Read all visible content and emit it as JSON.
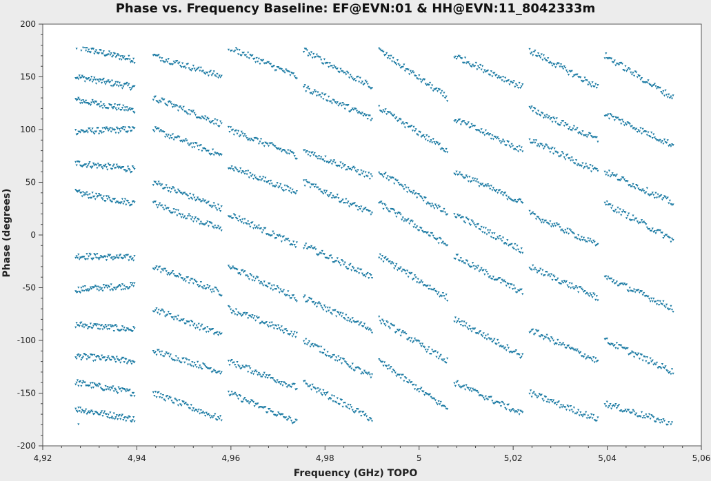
{
  "chart_data": {
    "type": "scatter",
    "title": "Phase vs. Frequency Baseline: EF@EVN:01 & HH@EVN:11_8042333m",
    "xlabel": "Frequency (GHz) TOPO",
    "ylabel": "Phase (degrees)",
    "xlim": [
      4.92,
      5.06
    ],
    "ylim": [
      -200,
      200
    ],
    "x_ticks": [
      "4,92",
      "4,94",
      "4,96",
      "4,98",
      "5",
      "5,02",
      "5,04",
      "5,06"
    ],
    "y_ticks": [
      "200",
      "150",
      "100",
      "50",
      "0",
      "-50",
      "-100",
      "-150",
      "-200"
    ],
    "grid": false,
    "marker_color": "#1a7aa3",
    "background_color": "#ffffff",
    "spectral_windows": [
      {
        "x_start": 4.927,
        "x_end": 4.9395
      },
      {
        "x_start": 4.9435,
        "x_end": 4.958
      },
      {
        "x_start": 4.9595,
        "x_end": 4.974
      },
      {
        "x_start": 4.9755,
        "x_end": 4.99
      },
      {
        "x_start": 4.9915,
        "x_end": 5.006
      },
      {
        "x_start": 5.0075,
        "x_end": 5.022
      },
      {
        "x_start": 5.0235,
        "x_end": 5.038
      },
      {
        "x_start": 5.0395,
        "x_end": 5.054
      }
    ],
    "series": [
      {
        "window": 0,
        "phase_start": 178,
        "phase_end": 166
      },
      {
        "window": 0,
        "phase_start": 150,
        "phase_end": 140
      },
      {
        "window": 0,
        "phase_start": 128,
        "phase_end": 118
      },
      {
        "window": 0,
        "phase_start": 98,
        "phase_end": 100
      },
      {
        "window": 0,
        "phase_start": 68,
        "phase_end": 62
      },
      {
        "window": 0,
        "phase_start": 40,
        "phase_end": 30
      },
      {
        "window": 0,
        "phase_start": -20,
        "phase_end": -22
      },
      {
        "window": 0,
        "phase_start": -52,
        "phase_end": -48
      },
      {
        "window": 0,
        "phase_start": -85,
        "phase_end": -90
      },
      {
        "window": 0,
        "phase_start": -115,
        "phase_end": -120
      },
      {
        "window": 0,
        "phase_start": -140,
        "phase_end": -150
      },
      {
        "window": 0,
        "phase_start": -165,
        "phase_end": -175
      },
      {
        "window": 1,
        "phase_start": 170,
        "phase_end": 150
      },
      {
        "window": 1,
        "phase_start": 130,
        "phase_end": 105
      },
      {
        "window": 1,
        "phase_start": 100,
        "phase_end": 75
      },
      {
        "window": 1,
        "phase_start": 50,
        "phase_end": 25
      },
      {
        "window": 1,
        "phase_start": 30,
        "phase_end": 5
      },
      {
        "window": 1,
        "phase_start": -30,
        "phase_end": -55
      },
      {
        "window": 1,
        "phase_start": -70,
        "phase_end": -95
      },
      {
        "window": 1,
        "phase_start": -110,
        "phase_end": -130
      },
      {
        "window": 1,
        "phase_start": -150,
        "phase_end": -175
      },
      {
        "window": 2,
        "phase_start": 178,
        "phase_end": 150
      },
      {
        "window": 2,
        "phase_start": 100,
        "phase_end": 75
      },
      {
        "window": 2,
        "phase_start": 65,
        "phase_end": 40
      },
      {
        "window": 2,
        "phase_start": 20,
        "phase_end": -10
      },
      {
        "window": 2,
        "phase_start": -30,
        "phase_end": -60
      },
      {
        "window": 2,
        "phase_start": -70,
        "phase_end": -95
      },
      {
        "window": 2,
        "phase_start": -120,
        "phase_end": -145
      },
      {
        "window": 2,
        "phase_start": -150,
        "phase_end": -178
      },
      {
        "window": 3,
        "phase_start": 175,
        "phase_end": 140
      },
      {
        "window": 3,
        "phase_start": 140,
        "phase_end": 110
      },
      {
        "window": 3,
        "phase_start": 80,
        "phase_end": 55
      },
      {
        "window": 3,
        "phase_start": 50,
        "phase_end": 20
      },
      {
        "window": 3,
        "phase_start": -10,
        "phase_end": -40
      },
      {
        "window": 3,
        "phase_start": -60,
        "phase_end": -90
      },
      {
        "window": 3,
        "phase_start": -100,
        "phase_end": -135
      },
      {
        "window": 3,
        "phase_start": -140,
        "phase_end": -175
      },
      {
        "window": 4,
        "phase_start": 175,
        "phase_end": 130
      },
      {
        "window": 4,
        "phase_start": 120,
        "phase_end": 80
      },
      {
        "window": 4,
        "phase_start": 60,
        "phase_end": 20
      },
      {
        "window": 4,
        "phase_start": 30,
        "phase_end": -10
      },
      {
        "window": 4,
        "phase_start": -20,
        "phase_end": -60
      },
      {
        "window": 4,
        "phase_start": -80,
        "phase_end": -120
      },
      {
        "window": 4,
        "phase_start": -120,
        "phase_end": -165
      },
      {
        "window": 5,
        "phase_start": 170,
        "phase_end": 140
      },
      {
        "window": 5,
        "phase_start": 110,
        "phase_end": 80
      },
      {
        "window": 5,
        "phase_start": 60,
        "phase_end": 30
      },
      {
        "window": 5,
        "phase_start": 20,
        "phase_end": -15
      },
      {
        "window": 5,
        "phase_start": -20,
        "phase_end": -55
      },
      {
        "window": 5,
        "phase_start": -80,
        "phase_end": -115
      },
      {
        "window": 5,
        "phase_start": -140,
        "phase_end": -170
      },
      {
        "window": 6,
        "phase_start": 175,
        "phase_end": 140
      },
      {
        "window": 6,
        "phase_start": 120,
        "phase_end": 90
      },
      {
        "window": 6,
        "phase_start": 90,
        "phase_end": 60
      },
      {
        "window": 6,
        "phase_start": 20,
        "phase_end": -10
      },
      {
        "window": 6,
        "phase_start": -30,
        "phase_end": -60
      },
      {
        "window": 6,
        "phase_start": -90,
        "phase_end": -120
      },
      {
        "window": 6,
        "phase_start": -150,
        "phase_end": -175
      },
      {
        "window": 7,
        "phase_start": 170,
        "phase_end": 130
      },
      {
        "window": 7,
        "phase_start": 115,
        "phase_end": 85
      },
      {
        "window": 7,
        "phase_start": 60,
        "phase_end": 30
      },
      {
        "window": 7,
        "phase_start": 30,
        "phase_end": -5
      },
      {
        "window": 7,
        "phase_start": -40,
        "phase_end": -70
      },
      {
        "window": 7,
        "phase_start": -100,
        "phase_end": -130
      },
      {
        "window": 7,
        "phase_start": -160,
        "phase_end": -180
      }
    ]
  }
}
